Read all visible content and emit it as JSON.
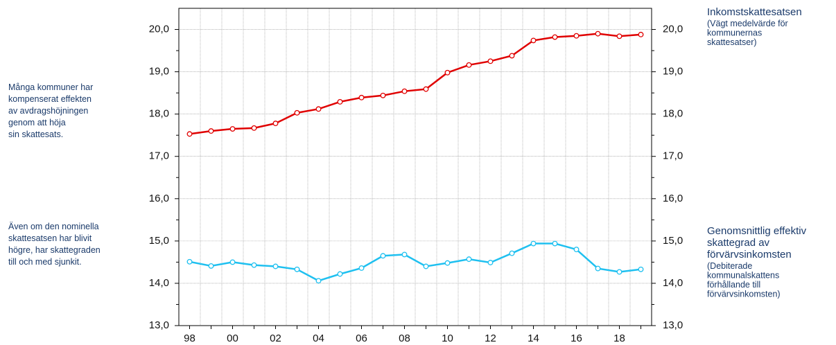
{
  "chart_data": {
    "type": "line",
    "categories": [
      "98",
      null,
      "00",
      null,
      "02",
      null,
      "04",
      null,
      "06",
      null,
      "08",
      null,
      "10",
      null,
      "12",
      null,
      "14",
      null,
      "16",
      null,
      "18",
      null
    ],
    "series": [
      {
        "name": "Inkomstskattesatsen",
        "note": [
          "(Vägt medelvärde för",
          "kommunernas",
          "skattesatser)"
        ],
        "color": "#e00000",
        "values": [
          17.53,
          17.6,
          17.65,
          17.67,
          17.78,
          18.03,
          18.12,
          18.29,
          18.39,
          18.44,
          18.54,
          18.59,
          18.98,
          19.16,
          19.25,
          19.38,
          19.74,
          19.82,
          19.85,
          19.9,
          19.84,
          19.88
        ]
      },
      {
        "name": [
          "Genomsnittlig effektiv",
          "skattegrad av",
          "förvärvsinkomsten"
        ],
        "note": [
          "(Debiterade",
          "kommunalskattens",
          "förhållande till",
          "förvärvsinkomsten)"
        ],
        "color": "#1ec0f0",
        "values": [
          14.51,
          14.41,
          14.5,
          14.43,
          14.4,
          14.33,
          14.06,
          14.22,
          14.36,
          14.65,
          14.68,
          14.4,
          14.48,
          14.57,
          14.49,
          14.71,
          14.94,
          14.94,
          14.8,
          14.35,
          14.27,
          14.33
        ]
      }
    ],
    "annotations": [
      [
        "Många kommuner har",
        "kompenserat effekten",
        "av avdragshöjningen",
        "genom att höja",
        "sin skattesats."
      ],
      [
        "Även om den nominella",
        "skattesatsen har blivit",
        "högre, har skattegraden",
        "till och med sjunkit."
      ]
    ],
    "ylim": [
      13,
      20.5
    ],
    "yticks": [
      {
        "value": 13,
        "label": "13,0"
      },
      {
        "value": 14,
        "label": "14,0"
      },
      {
        "value": 15,
        "label": "15,0"
      },
      {
        "value": 16,
        "label": "16,0"
      },
      {
        "value": 17,
        "label": "17,0"
      },
      {
        "value": 18,
        "label": "18,0"
      },
      {
        "value": 19,
        "label": "19,0"
      },
      {
        "value": 20,
        "label": "20,0"
      }
    ],
    "grid": true
  }
}
